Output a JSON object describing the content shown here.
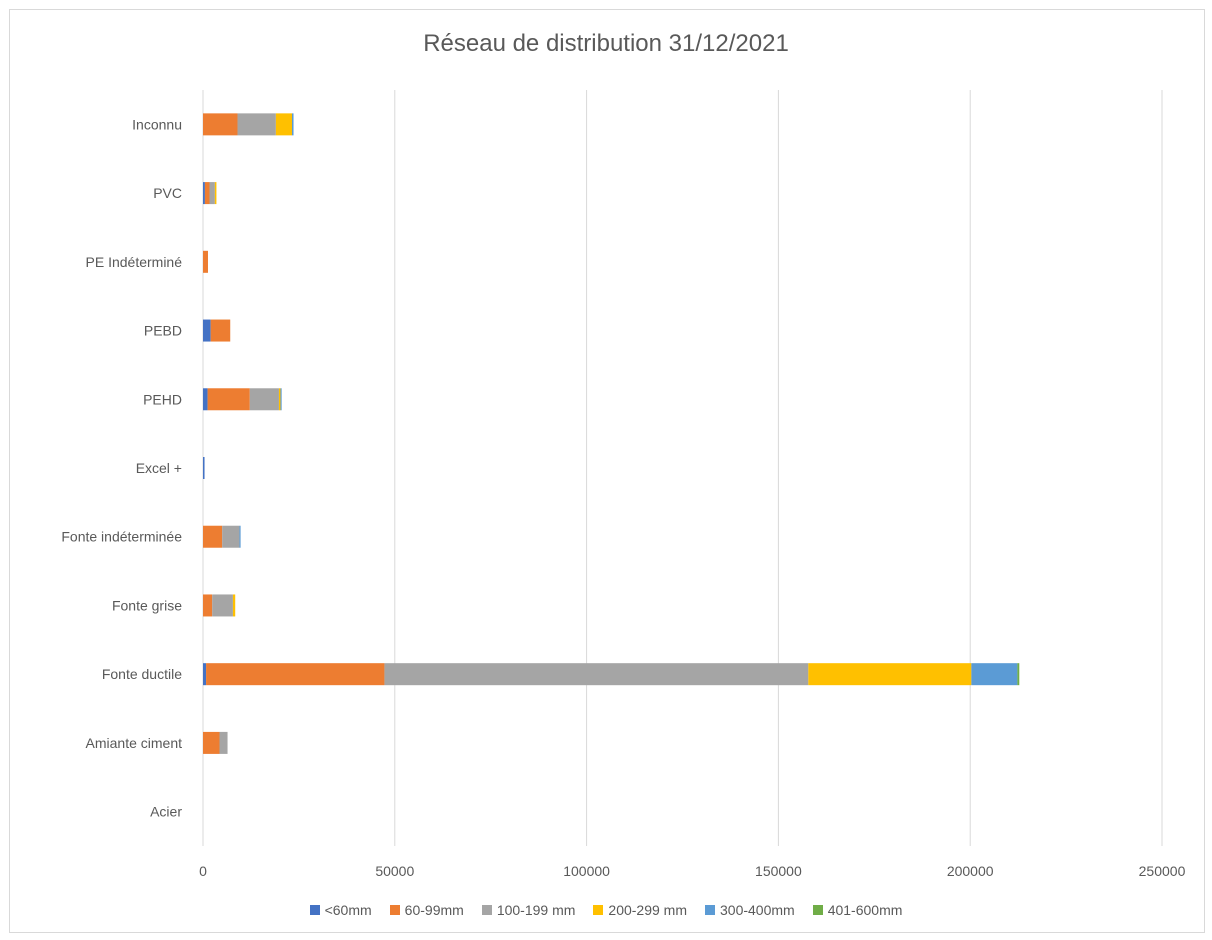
{
  "chart_data": {
    "type": "bar",
    "orientation": "horizontal",
    "stacked": true,
    "title": "Réseau de distribution 31/12/2021",
    "xlabel": "",
    "ylabel": "",
    "xlim": [
      0,
      250000
    ],
    "x_ticks": [
      "0",
      "50000",
      "100000",
      "150000",
      "200000",
      "250000"
    ],
    "x_tick_values": [
      0,
      50000,
      100000,
      150000,
      200000,
      250000
    ],
    "grid": "vertical",
    "legend_position": "bottom",
    "categories": [
      "Acier",
      "Amiante ciment",
      "Fonte ductile",
      "Fonte grise",
      "Fonte indéterminée",
      "Excel +",
      "PEHD",
      "PEBD",
      "PE Indéterminé",
      "PVC",
      "Inconnu"
    ],
    "series": [
      {
        "name": "<60mm",
        "color": "#4472c4",
        "values": [
          0,
          0,
          800,
          0,
          0,
          400,
          1200,
          2000,
          0,
          500,
          0
        ]
      },
      {
        "name": "60-99mm",
        "color": "#ed7d31",
        "values": [
          0,
          4300,
          46500,
          2400,
          5000,
          0,
          11000,
          5100,
          1300,
          1200,
          9000
        ]
      },
      {
        "name": "100-199 mm",
        "color": "#a5a5a5",
        "values": [
          0,
          2100,
          110500,
          5400,
          4500,
          0,
          7600,
          0,
          0,
          1400,
          10000
        ]
      },
      {
        "name": "200-299 mm",
        "color": "#ffc000",
        "values": [
          0,
          0,
          42500,
          600,
          0,
          0,
          400,
          0,
          0,
          400,
          4200
        ]
      },
      {
        "name": "300-400mm",
        "color": "#5b9bd5",
        "values": [
          0,
          0,
          12000,
          0,
          300,
          0,
          300,
          0,
          0,
          0,
          400
        ]
      },
      {
        "name": "401-600mm",
        "color": "#70ad47",
        "values": [
          0,
          0,
          500,
          0,
          0,
          0,
          0,
          0,
          0,
          0,
          0
        ]
      }
    ]
  }
}
